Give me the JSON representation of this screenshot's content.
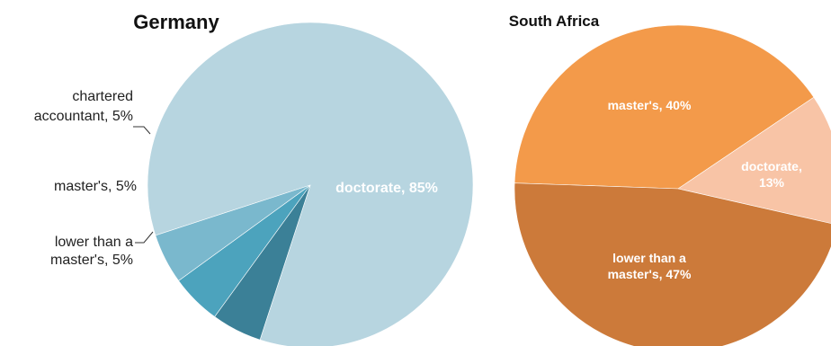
{
  "chart_data": [
    {
      "type": "pie",
      "title": "Germany",
      "slices": [
        {
          "label": "doctorate",
          "value": 85,
          "color": "#b7d5e0",
          "label_lines": [
            "doctorate, 85%"
          ],
          "label_position": "inside"
        },
        {
          "label": "lower than a master's",
          "value": 5,
          "color": "#3b8097",
          "label_lines": [
            "lower than a",
            "master's, 5%"
          ],
          "label_position": "outside-left"
        },
        {
          "label": "master's",
          "value": 5,
          "color": "#4ca3bd",
          "label_lines": [
            "master's, 5%"
          ],
          "label_position": "outside-left"
        },
        {
          "label": "chartered accountant",
          "value": 5,
          "color": "#7ab8cd",
          "label_lines": [
            "chartered",
            "accountant, 5%"
          ],
          "label_position": "outside-left"
        }
      ]
    },
    {
      "type": "pie",
      "title": "South Africa",
      "slices": [
        {
          "label": "master's",
          "value": 40,
          "color": "#f39a4a",
          "label_lines": [
            "master's, 40%"
          ],
          "label_position": "inside"
        },
        {
          "label": "doctorate",
          "value": 13,
          "color": "#f8c4a6",
          "label_lines": [
            "doctorate,",
            "13%"
          ],
          "label_position": "inside"
        },
        {
          "label": "lower than a master's",
          "value": 47,
          "color": "#cc7a3a",
          "label_lines": [
            "lower than a",
            "master's, 47%"
          ],
          "label_position": "inside"
        }
      ]
    }
  ]
}
